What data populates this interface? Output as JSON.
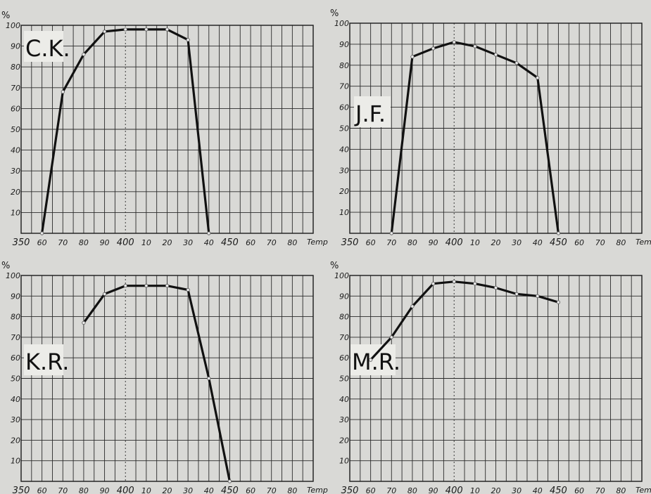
{
  "chart_data": [
    {
      "type": "line",
      "panel_label": "C.K.",
      "ylabel": "%",
      "xlabel": "Temp",
      "xlim": [
        350,
        490
      ],
      "ylim": [
        0,
        100
      ],
      "x_tick_values": [
        350,
        360,
        370,
        380,
        390,
        400,
        410,
        420,
        430,
        440,
        450,
        460,
        470,
        480
      ],
      "x_tick_labels": [
        "350",
        "60",
        "70",
        "80",
        "90",
        "400",
        "10",
        "20",
        "30",
        "40",
        "450",
        "60",
        "70",
        "80"
      ],
      "y_ticks": [
        10,
        20,
        30,
        40,
        50,
        60,
        70,
        80,
        90,
        100
      ],
      "y_tick_labels": [
        "10",
        "20",
        "30",
        "40",
        "50",
        "60",
        "70",
        "80",
        "90",
        "100"
      ],
      "series": [
        {
          "x": [
            360,
            370,
            380,
            390,
            400,
            410,
            420,
            430,
            440
          ],
          "y": [
            0,
            68,
            86,
            97,
            98,
            98,
            98,
            93,
            0
          ]
        }
      ]
    },
    {
      "type": "line",
      "panel_label": "J.F.",
      "ylabel": "%",
      "xlabel": "Temp",
      "xlim": [
        350,
        490
      ],
      "ylim": [
        0,
        100
      ],
      "x_tick_values": [
        350,
        360,
        370,
        380,
        390,
        400,
        410,
        420,
        430,
        440,
        450,
        460,
        470,
        480
      ],
      "x_tick_labels": [
        "350",
        "60",
        "70",
        "80",
        "90",
        "400",
        "10",
        "20",
        "30",
        "40",
        "450",
        "60",
        "70",
        "80"
      ],
      "y_ticks": [
        10,
        20,
        30,
        40,
        50,
        60,
        70,
        80,
        90,
        100
      ],
      "y_tick_labels": [
        "10",
        "20",
        "30",
        "40",
        "50",
        "60",
        "70",
        "80",
        "90",
        "100"
      ],
      "series": [
        {
          "x": [
            370,
            380,
            390,
            400,
            410,
            420,
            430,
            440,
            450
          ],
          "y": [
            0,
            84,
            88,
            91,
            89,
            85,
            81,
            74,
            0
          ]
        }
      ]
    },
    {
      "type": "line",
      "panel_label": "K.R.",
      "ylabel": "%",
      "xlabel": "Temp",
      "xlim": [
        350,
        490
      ],
      "ylim": [
        0,
        100
      ],
      "x_tick_values": [
        350,
        360,
        370,
        380,
        390,
        400,
        410,
        420,
        430,
        440,
        450,
        460,
        470,
        480
      ],
      "x_tick_labels": [
        "350",
        "60",
        "70",
        "80",
        "90",
        "400",
        "10",
        "20",
        "30",
        "40",
        "450",
        "60",
        "70",
        "80"
      ],
      "y_ticks": [
        10,
        20,
        30,
        40,
        50,
        60,
        70,
        80,
        90,
        100
      ],
      "y_tick_labels": [
        "10",
        "20",
        "30",
        "40",
        "50",
        "60",
        "70",
        "80",
        "90",
        "100"
      ],
      "series": [
        {
          "x": [
            380,
            390,
            400,
            410,
            420,
            430,
            440,
            450
          ],
          "y": [
            77,
            91,
            95,
            95,
            95,
            93,
            50,
            0
          ]
        }
      ]
    },
    {
      "type": "line",
      "panel_label": "M.R.",
      "ylabel": "%",
      "xlabel": "Temp",
      "xlim": [
        350,
        490
      ],
      "ylim": [
        0,
        100
      ],
      "x_tick_values": [
        350,
        360,
        370,
        380,
        390,
        400,
        410,
        420,
        430,
        440,
        450,
        460,
        470,
        480
      ],
      "x_tick_labels": [
        "350",
        "60",
        "70",
        "80",
        "90",
        "400",
        "10",
        "20",
        "30",
        "40",
        "450",
        "60",
        "70",
        "80"
      ],
      "y_ticks": [
        10,
        20,
        30,
        40,
        50,
        60,
        70,
        80,
        90,
        100
      ],
      "y_tick_labels": [
        "10",
        "20",
        "30",
        "40",
        "50",
        "60",
        "70",
        "80",
        "90",
        "100"
      ],
      "series": [
        {
          "x": [
            360,
            370,
            380,
            390,
            400,
            410,
            420,
            430,
            440,
            450
          ],
          "y": [
            59,
            70,
            85,
            96,
            97,
            96,
            94,
            91,
            90,
            87
          ]
        }
      ]
    }
  ]
}
